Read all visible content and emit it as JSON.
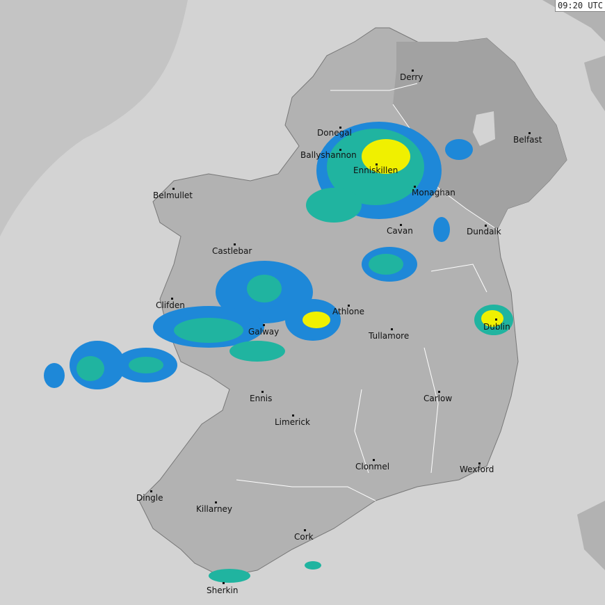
{
  "timestamp": "09:20 UTC",
  "colors": {
    "sea": "#d3d3d3",
    "far_sea": "#c4c4c4",
    "land": "#b2b2b2",
    "northern_ireland": "#a2a2a2",
    "rain_light": "#1e88d8",
    "rain_moderate": "#20b4a0",
    "rain_heavy": "#f0f000",
    "rain_very_heavy": "#f07020"
  },
  "cities": [
    {
      "name": "Derry"
    },
    {
      "name": "Donegal"
    },
    {
      "name": "Ballyshannon"
    },
    {
      "name": "Belfast"
    },
    {
      "name": "Enniskillen"
    },
    {
      "name": "Monaghan"
    },
    {
      "name": "Belmullet"
    },
    {
      "name": "Cavan"
    },
    {
      "name": "Dundalk"
    },
    {
      "name": "Castlebar"
    },
    {
      "name": "Clifden"
    },
    {
      "name": "Athlone"
    },
    {
      "name": "Galway"
    },
    {
      "name": "Dublin"
    },
    {
      "name": "Tullamore"
    },
    {
      "name": "Ennis"
    },
    {
      "name": "Carlow"
    },
    {
      "name": "Limerick"
    },
    {
      "name": "Clonmel"
    },
    {
      "name": "Wexford"
    },
    {
      "name": "Dingle"
    },
    {
      "name": "Killarney"
    },
    {
      "name": "Cork"
    },
    {
      "name": "Sherkin"
    }
  ]
}
